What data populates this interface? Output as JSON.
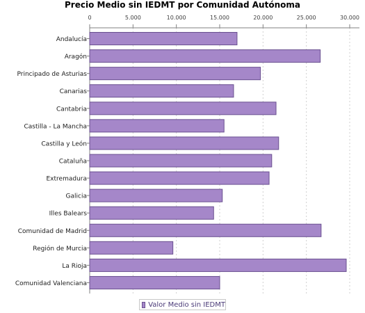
{
  "chart_data": {
    "type": "bar",
    "orientation": "horizontal",
    "title": "Precio Medio sin IEDMT por Comunidad Autónoma",
    "xlabel": "",
    "ylabel": "",
    "xlim": [
      0,
      30000
    ],
    "ticks": [
      "0",
      "5.000",
      "10.000",
      "15.000",
      "20.000",
      "25.000",
      "30.000"
    ],
    "grid": true,
    "axis_position": "top",
    "legend_placement": "bottom",
    "categories": [
      "Andalucía",
      "Aragón",
      "Principado de Asturias",
      "Canarias",
      "Cantabria",
      "Castilla - La Mancha",
      "Castilla y León",
      "Cataluña",
      "Extremadura",
      "Galicia",
      "Illes Balears",
      "Comunidad de Madrid",
      "Región de Murcia",
      "La Rioja",
      "Comunidad Valenciana"
    ],
    "series": [
      {
        "name": "Valor Medio sin IEDMT",
        "color": "#a587c9",
        "values": [
          17000,
          26600,
          19700,
          16600,
          21500,
          15500,
          21800,
          21000,
          20700,
          15300,
          14300,
          26700,
          9600,
          29600,
          15000
        ]
      }
    ]
  }
}
